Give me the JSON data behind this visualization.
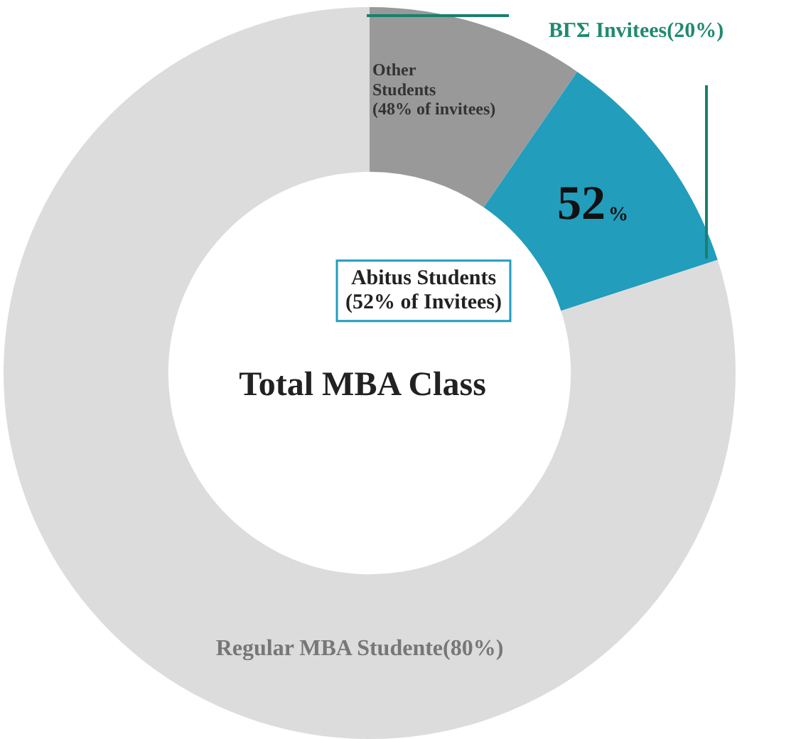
{
  "chart_data": {
    "type": "donut",
    "title": "Total MBA Class",
    "categories": [
      "Other Students (48% of invitees)",
      "Abitus Students (52% of Invitees)",
      "Regular MBA Studente(80%)"
    ],
    "values": [
      9.6,
      10.4,
      80
    ],
    "colors": [
      "#999999",
      "#229dbc",
      "#dcdcdc"
    ],
    "annotations": [
      "52%",
      "ΒΓΣ Invitees(20%)"
    ],
    "legend": false
  }
}
